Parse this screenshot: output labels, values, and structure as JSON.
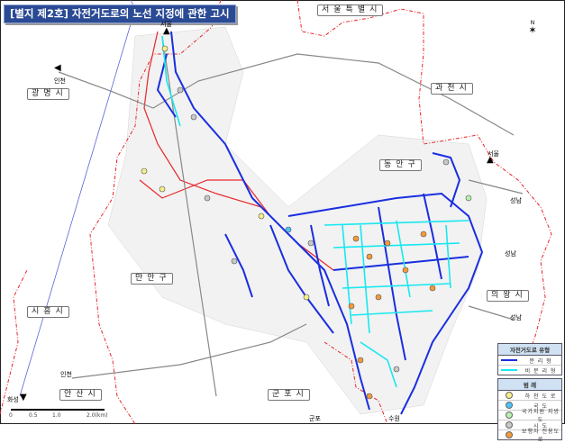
{
  "title": "[별지 제2호] 자전거도로의 노선 지정에 관한 고시",
  "regions": [
    {
      "name": "서울특별시"
    },
    {
      "name": "광명시"
    },
    {
      "name": "과천시"
    },
    {
      "name": "동안구"
    },
    {
      "name": "만안구"
    },
    {
      "name": "의왕시"
    },
    {
      "name": "시흥시"
    },
    {
      "name": "안산시"
    },
    {
      "name": "군포시"
    }
  ],
  "directions": [
    "서울",
    "인천",
    "서울",
    "성남",
    "성남",
    "성남",
    "인천",
    "화성",
    "군포",
    "수원"
  ],
  "compass": {
    "label": "N",
    "icon": "north-arrow-icon"
  },
  "scale_bar": {
    "labels": [
      "0",
      "0.5",
      "1.0",
      "2.0(km)"
    ]
  },
  "legend": {
    "type_title": "자전거도로 유형",
    "types": [
      {
        "label": "분 리 형",
        "color": "#1a2ee0"
      },
      {
        "label": "비 분 리 형",
        "color": "#18e8f0"
      }
    ],
    "legend_title": "범 례",
    "items": [
      {
        "label": "하 천 도 로",
        "color": "#f4f08a"
      },
      {
        "label": "국 도",
        "color": "#4fc3f7"
      },
      {
        "label": "국가지원 지방도",
        "color": "#b8f0b0"
      },
      {
        "label": "시 도",
        "color": "#c8c8c8"
      },
      {
        "label": "보행자 전용도로",
        "color": "#f39a3a"
      }
    ]
  },
  "colors": {
    "boundary": "#e8262a",
    "separated": "#1a2ee0",
    "non_separated": "#18e8f0",
    "title_bg": "#2a4a94"
  }
}
